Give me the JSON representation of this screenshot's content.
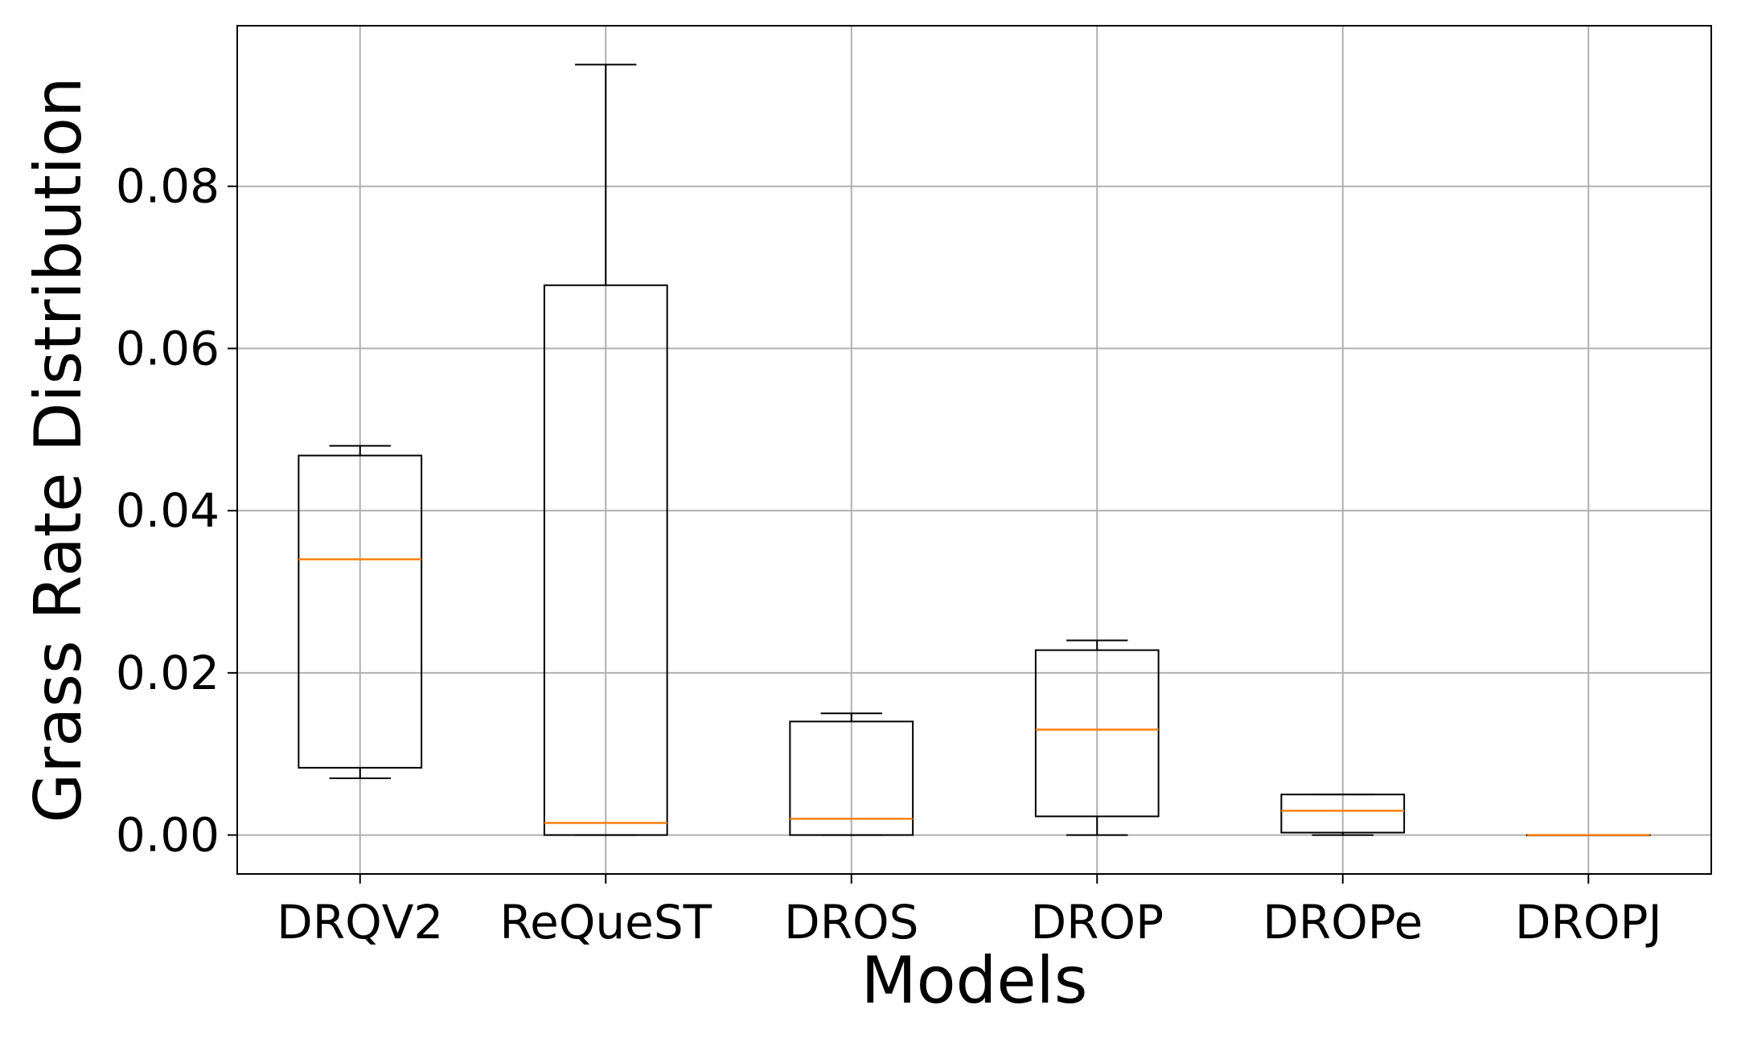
{
  "chart_data": {
    "type": "boxplot",
    "title": "",
    "xlabel": "Models",
    "ylabel": "Grass Rate Distribution",
    "ylim": [
      -0.0048,
      0.0998
    ],
    "yticks": [
      0.0,
      0.02,
      0.04,
      0.06,
      0.08
    ],
    "ytick_labels": [
      "0.00",
      "0.02",
      "0.04",
      "0.06",
      "0.08"
    ],
    "grid": true,
    "colors": {
      "box": "#000000",
      "median": "#ff7f0e",
      "grid": "#b0b0b0"
    },
    "categories": [
      "DRQV2",
      "ReQueST",
      "DROS",
      "DROP",
      "DROPe",
      "DROPJ"
    ],
    "boxes": [
      {
        "name": "DRQV2",
        "whislo": 0.007,
        "q1": 0.0083,
        "med": 0.034,
        "q3": 0.0468,
        "whishi": 0.048
      },
      {
        "name": "ReQueST",
        "whislo": 0.0,
        "q1": 0.0,
        "med": 0.0015,
        "q3": 0.0678,
        "whishi": 0.095
      },
      {
        "name": "DROS",
        "whislo": 0.0,
        "q1": 0.0,
        "med": 0.002,
        "q3": 0.014,
        "whishi": 0.015
      },
      {
        "name": "DROP",
        "whislo": 0.0,
        "q1": 0.0023,
        "med": 0.013,
        "q3": 0.0228,
        "whishi": 0.024
      },
      {
        "name": "DROPe",
        "whislo": 0.0,
        "q1": 0.0003,
        "med": 0.003,
        "q3": 0.005,
        "whishi": 0.005
      },
      {
        "name": "DROPJ",
        "whislo": 0.0,
        "q1": 0.0,
        "med": 0.0,
        "q3": 0.0,
        "whishi": 0.0
      }
    ]
  }
}
